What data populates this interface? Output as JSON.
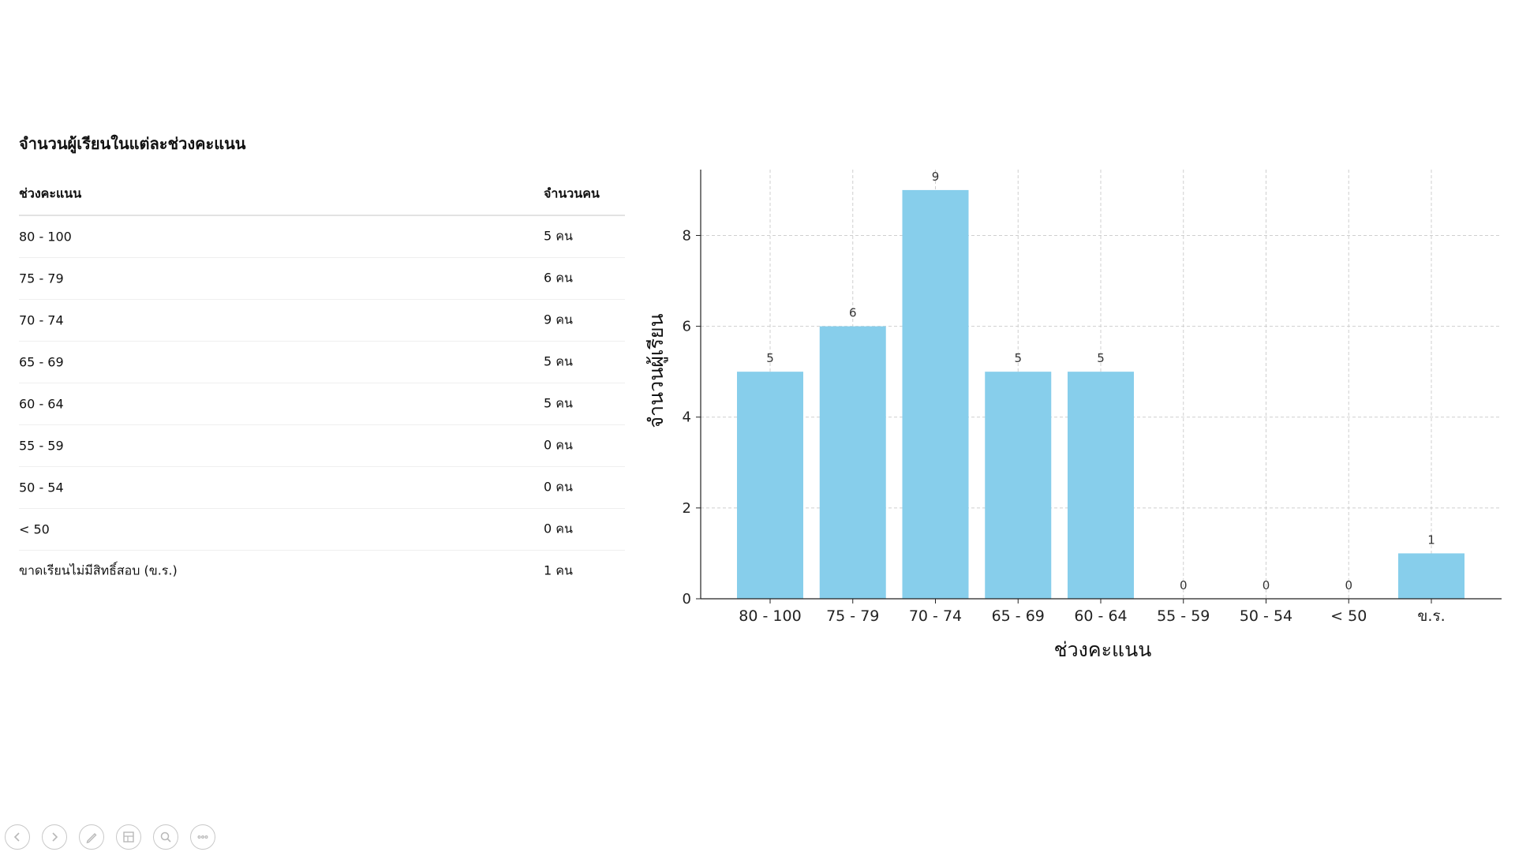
{
  "table": {
    "title": "จำนวนผู้เรียนในแต่ละช่วงคะแนน",
    "headers": {
      "range": "ช่วงคะแนน",
      "count": "จำนวนคน"
    },
    "rows": [
      {
        "range": "80 - 100",
        "count": "5 คน"
      },
      {
        "range": "75 - 79",
        "count": "6 คน"
      },
      {
        "range": "70 - 74",
        "count": "9 คน"
      },
      {
        "range": "65 - 69",
        "count": "5 คน"
      },
      {
        "range": "60 - 64",
        "count": "5 คน"
      },
      {
        "range": "55 - 59",
        "count": "0 คน"
      },
      {
        "range": "50 - 54",
        "count": "0 คน"
      },
      {
        "range": "< 50",
        "count": "0 คน"
      },
      {
        "range": "ขาดเรียนไม่มีสิทธิ์สอบ (ข.ร.)",
        "count": "1 คน"
      }
    ]
  },
  "chart_data": {
    "type": "bar",
    "categories": [
      "80 - 100",
      "75 - 79",
      "70 - 74",
      "65 - 69",
      "60 - 64",
      "55 - 59",
      "50 - 54",
      "< 50",
      "ข.ร."
    ],
    "values": [
      5,
      6,
      9,
      5,
      5,
      0,
      0,
      0,
      1
    ],
    "xlabel": "ช่วงคะแนน",
    "ylabel": "จำนวนผู้เรียน",
    "ylim": [
      0,
      9.45
    ],
    "yticks": [
      0,
      2,
      4,
      6,
      8
    ],
    "grid": true,
    "bar_color": "#87ceeb",
    "data_labels": true
  },
  "nav": {
    "buttons": [
      "previous-icon",
      "next-icon",
      "pen-icon",
      "slides-icon",
      "zoom-icon",
      "more-icon"
    ]
  }
}
